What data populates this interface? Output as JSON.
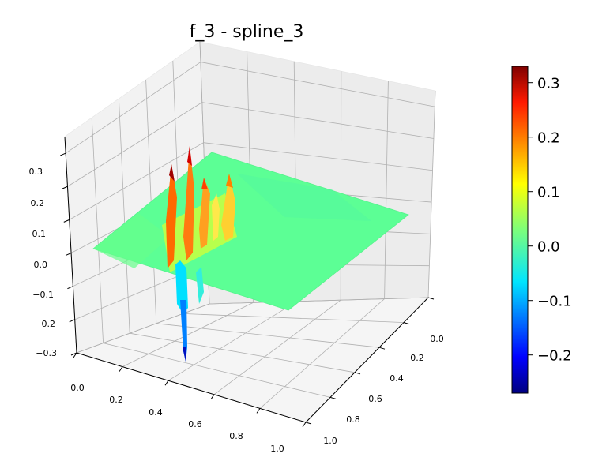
{
  "chart_data": {
    "type": "surface3d",
    "title": "f_3 - spline_3",
    "colormap": "jet",
    "x_ticks": [
      "0.0",
      "0.2",
      "0.4",
      "0.6",
      "0.8",
      "1.0"
    ],
    "y_ticks": [
      "0.0",
      "0.2",
      "0.4",
      "0.6",
      "0.8",
      "1.0"
    ],
    "z_ticks": [
      "−0.3",
      "−0.2",
      "−0.1",
      "0.0",
      "0.1",
      "0.2",
      "0.3"
    ],
    "xlim": [
      0,
      1
    ],
    "ylim": [
      0,
      1
    ],
    "zlim": [
      -0.3,
      0.35
    ],
    "grid": true,
    "colorbar": {
      "range": [
        -0.27,
        0.33
      ],
      "ticks": [
        "−0.2",
        "−0.1",
        "0.0",
        "0.1",
        "0.2",
        "0.3"
      ],
      "tick_values": [
        -0.2,
        -0.1,
        0.0,
        0.1,
        0.2,
        0.3
      ]
    },
    "surface_features": {
      "baseline": 0.0,
      "ripple_peaks": [
        {
          "x": 0.08,
          "y": 0.35,
          "z": 0.32
        },
        {
          "x": 0.15,
          "y": 0.33,
          "z": 0.33
        },
        {
          "x": 0.22,
          "y": 0.3,
          "z": 0.25
        },
        {
          "x": 0.3,
          "y": 0.28,
          "z": 0.2
        }
      ],
      "trough": {
        "x": 0.1,
        "y": 0.48,
        "z": -0.28
      }
    }
  }
}
